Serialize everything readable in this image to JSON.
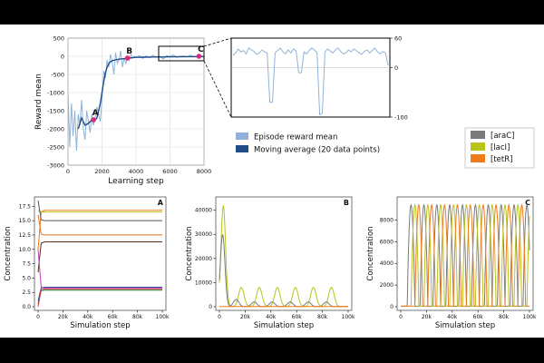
{
  "reward_chart": {
    "type": "line",
    "xlabel": "Learning step",
    "ylabel": "Reward mean",
    "xlim": [
      0,
      8000
    ],
    "ylim": [
      -3000,
      500
    ],
    "xticks": [
      "0",
      "2000",
      "4000",
      "6000",
      "8000"
    ],
    "yticks": [
      "500",
      "0",
      "-500",
      "-1000",
      "-1500",
      "-2000",
      "-2500",
      "-3000"
    ],
    "grid": true,
    "legend_position": "below-right",
    "series": [
      {
        "name": "Episode reward mean",
        "color": "#8fb3d8",
        "x": [
          0,
          100,
          200,
          300,
          400,
          500,
          600,
          700,
          800,
          900,
          1000,
          1100,
          1200,
          1300,
          1400,
          1500,
          1600,
          1700,
          1800,
          1900,
          2000,
          2100,
          2200,
          2300,
          2400,
          2500,
          2600,
          2700,
          2800,
          2900,
          3000,
          3100,
          3200,
          3300,
          3400,
          3500,
          3600,
          3700,
          3800,
          3900,
          4000,
          4200,
          4400,
          4600,
          4800,
          5000,
          5200,
          5400,
          5600,
          5800,
          6000,
          6200,
          6400,
          6600,
          6800,
          7000,
          7200,
          7400,
          7600,
          7800,
          8000
        ],
        "y": [
          -1000,
          -2500,
          -1300,
          -2200,
          -1500,
          -2600,
          -1600,
          -1900,
          -1200,
          -2000,
          -2300,
          -1500,
          -1800,
          -2100,
          -1600,
          -1900,
          -1700,
          -1400,
          -1600,
          -1800,
          -1200,
          -400,
          -600,
          -100,
          -300,
          50,
          -150,
          -500,
          100,
          -200,
          -100,
          150,
          -300,
          -50,
          -200,
          0,
          -100,
          50,
          -50,
          0,
          -30,
          20,
          -60,
          10,
          -40,
          30,
          -20,
          0,
          -80,
          20,
          -10,
          40,
          -30,
          0,
          10,
          -20,
          30,
          -10,
          0,
          20,
          -20
        ]
      },
      {
        "name": "Moving average (20 data points)",
        "color": "#1f4e89",
        "x": [
          600,
          800,
          1000,
          1200,
          1400,
          1500,
          1600,
          1700,
          1800,
          1900,
          2000,
          2100,
          2200,
          2300,
          2400,
          2500,
          2600,
          2800,
          3000,
          3200,
          3400,
          3600,
          3800,
          4000,
          4500,
          5000,
          5500,
          6000,
          6500,
          7000,
          7500,
          8000
        ],
        "y": [
          -2000,
          -1700,
          -1900,
          -1850,
          -1750,
          -1750,
          -1750,
          -1700,
          -1500,
          -1300,
          -1000,
          -700,
          -450,
          -300,
          -200,
          -150,
          -120,
          -100,
          -80,
          -70,
          -60,
          -50,
          -40,
          -30,
          -25,
          -20,
          -20,
          -15,
          -15,
          -10,
          -10,
          -10
        ]
      }
    ],
    "markers": [
      {
        "label": "A",
        "x": 1500,
        "y": -1750
      },
      {
        "label": "B",
        "x": 3500,
        "y": -50
      },
      {
        "label": "C",
        "x": 7700,
        "y": 0
      }
    ]
  },
  "zoom_chart": {
    "type": "line",
    "ylim": [
      -100,
      60
    ],
    "yticks": [
      "60",
      "0",
      "-100"
    ],
    "color": "#8fb3d8",
    "x": [
      0,
      1,
      2,
      3,
      4,
      5,
      6,
      7,
      8,
      9,
      10,
      11,
      12,
      13,
      14,
      15,
      16,
      17,
      18,
      19,
      20,
      21,
      22,
      23,
      24,
      25,
      26,
      27,
      28,
      29,
      30,
      31,
      32,
      33,
      34,
      35,
      36,
      37,
      38,
      39,
      40,
      41,
      42,
      43,
      44,
      45,
      46,
      47,
      48,
      49,
      50,
      51,
      52,
      53,
      54,
      55,
      56,
      57,
      58,
      59
    ],
    "y": [
      25,
      30,
      38,
      32,
      35,
      28,
      40,
      36,
      33,
      27,
      30,
      36,
      32,
      30,
      -70,
      -70,
      30,
      35,
      40,
      32,
      28,
      36,
      30,
      38,
      34,
      -10,
      -10,
      32,
      28,
      35,
      40,
      36,
      30,
      -95,
      -92,
      32,
      38,
      34,
      30,
      36,
      40,
      33,
      28,
      30,
      36,
      32,
      38,
      34,
      30,
      27,
      33,
      36,
      30,
      35,
      40,
      32,
      28,
      33,
      30,
      5
    ]
  },
  "legend2": {
    "items": [
      {
        "name": "[araC]",
        "color": "#7a7a7a"
      },
      {
        "name": "[lacI]",
        "color": "#b8c41a"
      },
      {
        "name": "[tetR]",
        "color": "#f07b1a"
      }
    ]
  },
  "chart_data": [
    {
      "type": "line",
      "label": "A",
      "xlabel": "Simulation step",
      "ylabel": "Concentration",
      "xlim": [
        0,
        100000
      ],
      "ylim": [
        0,
        18.5
      ],
      "xticks": [
        "0",
        "20k",
        "40k",
        "60k",
        "80k",
        "100k"
      ],
      "yticks": [
        "0.0",
        "2.5",
        "5.0",
        "7.5",
        "10.0",
        "12.5",
        "15.0",
        "17.5"
      ],
      "series": [
        {
          "color": "#f07b1a",
          "steady": 16.8,
          "start": 10
        },
        {
          "color": "#b8c41a",
          "steady": 16.5,
          "start": 16.8
        },
        {
          "color": "#555555",
          "steady": 15.0,
          "start": 18.5
        },
        {
          "color": "#e07020",
          "steady": 12.5,
          "start": 16
        },
        {
          "color": "#5a2a1a",
          "steady": 11.3,
          "start": 6
        },
        {
          "color": "#3a3aa0",
          "steady": 3.4,
          "start": 1
        },
        {
          "color": "#c040c0",
          "steady": 3.2,
          "start": 10
        },
        {
          "color": "#2a7a2a",
          "steady": 2.9,
          "start": 0.5
        },
        {
          "color": "#d04040",
          "steady": 3.1,
          "start": 0
        }
      ]
    },
    {
      "type": "line",
      "label": "B",
      "xlabel": "Simulation step",
      "ylabel": "Concentration",
      "xlim": [
        0,
        100000
      ],
      "ylim": [
        0,
        44000
      ],
      "xticks": [
        "0",
        "20k",
        "40k",
        "60k",
        "80k",
        "100k"
      ],
      "yticks": [
        "0",
        "10000",
        "20000",
        "30000",
        "40000"
      ],
      "series": [
        {
          "name": "[lacI]",
          "color": "#b8c41a",
          "peaks_x": [
            3000,
            17000,
            31000,
            45000,
            59000,
            73000,
            87000
          ],
          "peaks_y": [
            42000,
            8000,
            8000,
            8000,
            8000,
            8000,
            8000
          ]
        },
        {
          "name": "[araC]",
          "color": "#7a7a7a",
          "peaks_x": [
            2500,
            13000,
            27000,
            41000,
            55000,
            69000,
            83000
          ],
          "peaks_y": [
            30000,
            3000,
            2000,
            2000,
            2000,
            2000,
            2000
          ]
        },
        {
          "name": "[tetR]",
          "color": "#f07b1a",
          "peaks_x": [],
          "peaks_y": []
        }
      ]
    },
    {
      "type": "line",
      "label": "C",
      "xlabel": "Simulation step",
      "ylabel": "Concentration",
      "xlim": [
        0,
        100000
      ],
      "ylim": [
        0,
        9800
      ],
      "xticks": [
        "0",
        "20k",
        "40k",
        "60k",
        "80k",
        "100k"
      ],
      "yticks": [
        "0",
        "2000",
        "4000",
        "6000",
        "8000"
      ],
      "series": [
        {
          "name": "[araC]",
          "color": "#7a7a7a",
          "first_peak": 8000
        },
        {
          "name": "[lacI]",
          "color": "#b8c41a",
          "first_peak": 11000
        },
        {
          "name": "[tetR]",
          "color": "#f07b1a",
          "first_peak": 14000
        }
      ],
      "period": 10000,
      "amplitude": 9400
    }
  ]
}
